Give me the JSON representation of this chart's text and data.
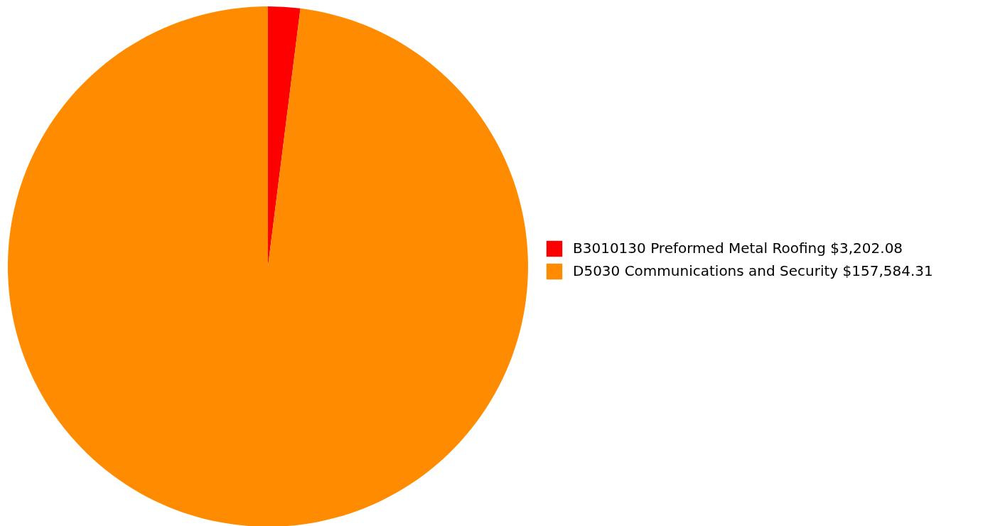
{
  "chart_data": {
    "type": "pie",
    "categories": [
      "B3010130 Preformed Metal Roofing $3,202.08",
      "D5030 Communications and Security $157,584.31"
    ],
    "values": [
      3202.08,
      157584.31
    ],
    "colors": [
      "#ff0000",
      "#ff8c00"
    ],
    "legend": "right"
  }
}
